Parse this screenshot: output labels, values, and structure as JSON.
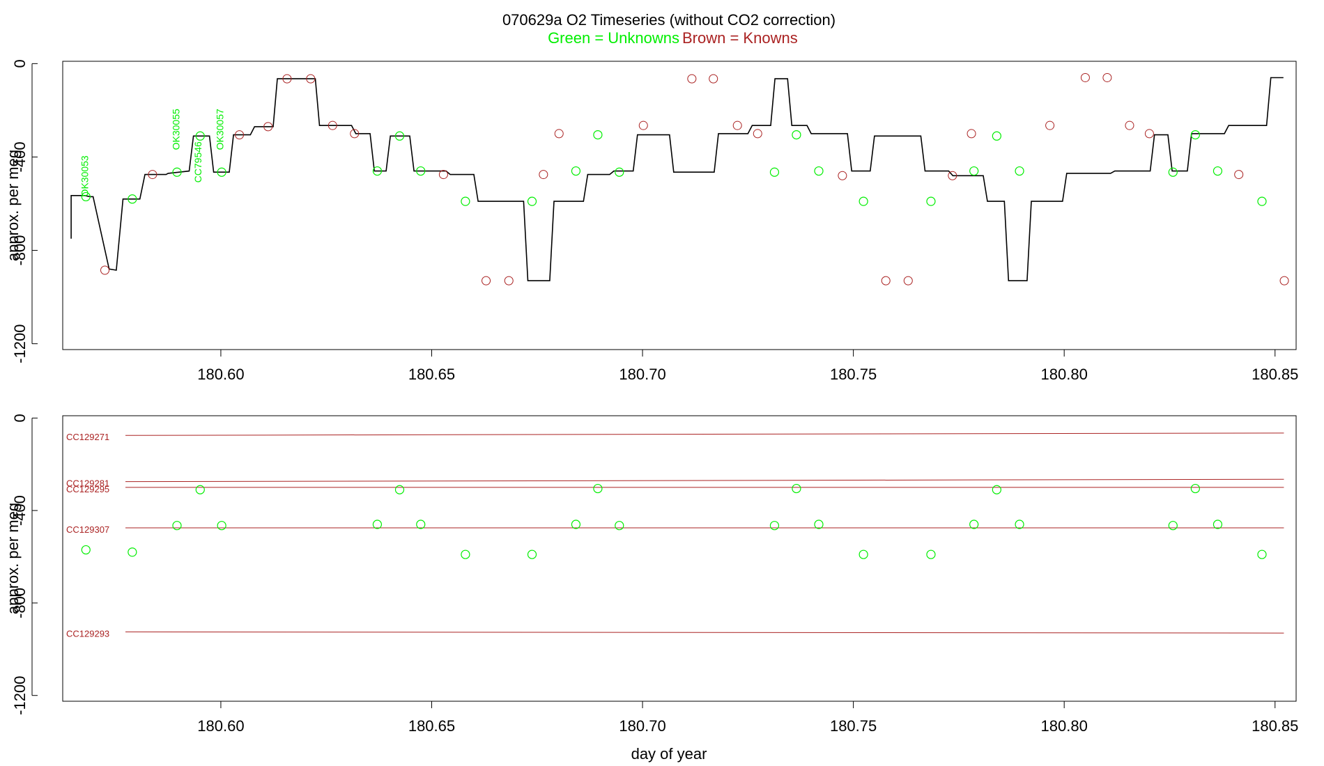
{
  "header": {
    "title": "070629a   O2 Timeseries (without CO2 correction)",
    "legend_green": "Green = Unknowns",
    "legend_brown": "Brown = Knowns"
  },
  "colors": {
    "unknown": "#00ee00",
    "known": "#aa2222",
    "line": "#000000",
    "frame": "#000000"
  },
  "chart_data": [
    {
      "type": "line",
      "panel": "top",
      "title": "070629a   O2 Timeseries (without CO2 correction)",
      "xlabel": "",
      "ylabel": "approx. per meg",
      "xlim": [
        180.5625,
        180.855
      ],
      "ylim": [
        -1225,
        10
      ],
      "xticks": [
        180.6,
        180.65,
        180.7,
        180.75,
        180.8,
        180.85
      ],
      "xtick_labels": [
        "180.60",
        "180.65",
        "180.70",
        "180.75",
        "180.80",
        "180.85"
      ],
      "yticks": [
        0,
        -400,
        -800,
        -1200
      ],
      "ytick_labels": [
        "0",
        "-400",
        "-800",
        "-1200"
      ],
      "series": [
        {
          "role": "trace",
          "x": [
            180.5645,
            180.5645,
            180.5677,
            180.569,
            180.5697,
            180.5735,
            180.5752,
            180.5768,
            180.5808,
            180.582,
            180.587,
            180.5875,
            180.5925,
            180.5935,
            180.5973,
            180.5983,
            180.602,
            180.603,
            180.607,
            180.608,
            180.6124,
            180.6134,
            180.6224,
            180.6234,
            180.631,
            180.632,
            180.6354,
            180.6364,
            180.6392,
            180.6402,
            180.6448,
            180.6458,
            180.6534,
            180.6544,
            180.66,
            180.661,
            180.6718,
            180.6728,
            180.678,
            180.679,
            180.686,
            180.687,
            180.6922,
            180.6932,
            180.6978,
            180.6988,
            180.7064,
            180.7074,
            180.717,
            180.718,
            180.725,
            180.726,
            180.7304,
            180.7314,
            180.7344,
            180.7354,
            180.739,
            180.74,
            180.7486,
            180.7496,
            180.754,
            180.755,
            180.766,
            180.767,
            180.7726,
            180.7736,
            180.7808,
            180.7818,
            180.7858,
            180.7868,
            180.7912,
            180.7922,
            180.7996,
            180.8006,
            180.811,
            180.812,
            180.8204,
            180.8214,
            180.8246,
            180.8256,
            180.8292,
            180.8302,
            180.838,
            180.839,
            180.848,
            180.849,
            180.852
          ],
          "y": [
            -750,
            -565,
            -565,
            -570,
            -570,
            -880,
            -885,
            -580,
            -580,
            -475,
            -475,
            -470,
            -460,
            -310,
            -310,
            -465,
            -465,
            -305,
            -305,
            -270,
            -270,
            -65,
            -65,
            -265,
            -265,
            -300,
            -300,
            -460,
            -460,
            -310,
            -310,
            -460,
            -460,
            -475,
            -475,
            -590,
            -590,
            -930,
            -930,
            -590,
            -590,
            -475,
            -475,
            -460,
            -460,
            -305,
            -305,
            -465,
            -465,
            -300,
            -300,
            -265,
            -265,
            -65,
            -65,
            -265,
            -265,
            -300,
            -300,
            -460,
            -460,
            -310,
            -310,
            -460,
            -460,
            -480,
            -480,
            -590,
            -590,
            -930,
            -930,
            -590,
            -590,
            -470,
            -470,
            -460,
            -460,
            -305,
            -305,
            -460,
            -460,
            -300,
            -300,
            -265,
            -265,
            -60,
            -60
          ]
        }
      ],
      "known_points": {
        "x": [
          180.5725,
          180.5838,
          180.6044,
          180.6112,
          180.6157,
          180.6213,
          180.6265,
          180.6317,
          180.6528,
          180.6629,
          180.6683,
          180.6765,
          180.6802,
          180.7002,
          180.7117,
          180.7168,
          180.7225,
          180.7273,
          180.7474,
          180.7577,
          180.763,
          180.7735,
          180.778,
          180.7966,
          180.805,
          180.8102,
          180.8155,
          180.8202,
          180.8414,
          180.8522
        ],
        "y": [
          -885,
          -475,
          -305,
          -270,
          -65,
          -65,
          -265,
          -300,
          -475,
          -930,
          -930,
          -475,
          -300,
          -265,
          -65,
          -65,
          -265,
          -300,
          -480,
          -930,
          -930,
          -480,
          -300,
          -265,
          -60,
          -60,
          -265,
          -300,
          -475,
          -930
        ]
      },
      "unknown_points": {
        "x": [
          180.568,
          180.579,
          180.5896,
          180.5951,
          180.6002,
          180.6371,
          180.6424,
          180.6474,
          180.658,
          180.6738,
          180.6842,
          180.6894,
          180.6945,
          180.7313,
          180.7365,
          180.7418,
          180.7524,
          180.7684,
          180.7786,
          180.784,
          180.7894,
          180.8258,
          180.8311,
          180.8364,
          180.8469
        ],
        "y": [
          -570,
          -580,
          -465,
          -310,
          -465,
          -460,
          -310,
          -460,
          -590,
          -590,
          -460,
          -305,
          -465,
          -465,
          -305,
          -460,
          -590,
          -590,
          -460,
          -310,
          -460,
          -465,
          -305,
          -460,
          -590
        ]
      },
      "annotations": [
        {
          "text": "OK30053",
          "x": 180.5685,
          "y": -570,
          "color": "unknown"
        },
        {
          "text": "OK30055",
          "x": 180.5902,
          "y": -370,
          "color": "unknown"
        },
        {
          "text": "CC79546",
          "x": 180.5954,
          "y": -510,
          "color": "unknown"
        },
        {
          "text": "OK30057",
          "x": 180.6006,
          "y": -370,
          "color": "unknown"
        }
      ]
    },
    {
      "type": "scatter",
      "panel": "bottom",
      "xlabel": "day of year",
      "ylabel": "approx. per meg",
      "xlim": [
        180.5625,
        180.855
      ],
      "ylim": [
        -1225,
        10
      ],
      "xticks": [
        180.6,
        180.65,
        180.7,
        180.75,
        180.8,
        180.85
      ],
      "xtick_labels": [
        "180.60",
        "180.65",
        "180.70",
        "180.75",
        "180.80",
        "180.85"
      ],
      "yticks": [
        0,
        -400,
        -800,
        -1200
      ],
      "ytick_labels": [
        "0",
        "-400",
        "-800",
        "-1200"
      ],
      "reference_lines": [
        {
          "name": "CC129271",
          "y_start": -75,
          "y_end": -65
        },
        {
          "name": "CC129281",
          "y_start": -275,
          "y_end": -265
        },
        {
          "name": "CC129295",
          "y_start": -300,
          "y_end": -300
        },
        {
          "name": "CC129307",
          "y_start": -475,
          "y_end": -475
        },
        {
          "name": "CC129293",
          "y_start": -925,
          "y_end": -930
        }
      ],
      "unknown_points": {
        "x": [
          180.568,
          180.579,
          180.5896,
          180.5951,
          180.6002,
          180.6371,
          180.6424,
          180.6474,
          180.658,
          180.6738,
          180.6842,
          180.6894,
          180.6945,
          180.7313,
          180.7365,
          180.7418,
          180.7524,
          180.7684,
          180.7786,
          180.784,
          180.7894,
          180.8258,
          180.8311,
          180.8364,
          180.8469
        ],
        "y": [
          -570,
          -580,
          -465,
          -310,
          -465,
          -460,
          -310,
          -460,
          -590,
          -590,
          -460,
          -305,
          -465,
          -465,
          -305,
          -460,
          -590,
          -590,
          -460,
          -310,
          -460,
          -465,
          -305,
          -460,
          -590
        ]
      }
    }
  ]
}
